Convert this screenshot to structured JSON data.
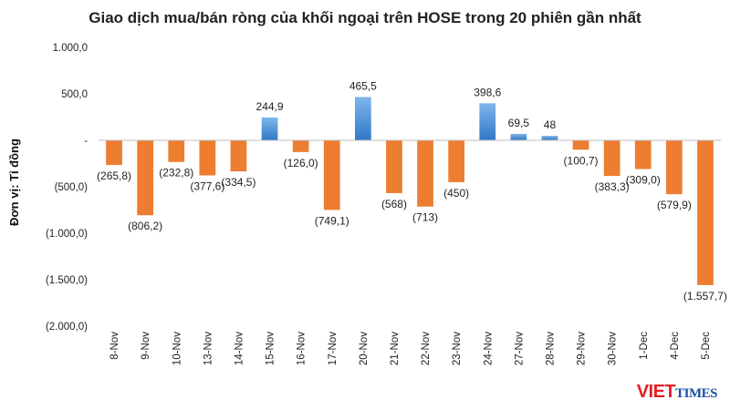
{
  "chart_data": {
    "type": "bar",
    "title": "Giao dịch mua/bán ròng của khối ngoại trên HOSE trong 20 phiên gần nhất",
    "xlabel": "",
    "ylabel": "Đơn vị: Tỉ đồng",
    "ylim": [
      -2000,
      1000
    ],
    "yticks": [
      1000,
      500,
      0,
      -500,
      -1000,
      -1500,
      -2000
    ],
    "ytick_labels": [
      "1.000,0",
      "500,0",
      "-",
      "(500,0)",
      "(1.000,0)",
      "(1.500,0)",
      "(2.000,0)"
    ],
    "categories": [
      "8-Nov",
      "9-Nov",
      "10-Nov",
      "13-Nov",
      "14-Nov",
      "15-Nov",
      "16-Nov",
      "17-Nov",
      "20-Nov",
      "21-Nov",
      "22-Nov",
      "23-Nov",
      "24-Nov",
      "27-Nov",
      "28-Nov",
      "29-Nov",
      "30-Nov",
      "1-Dec",
      "4-Dec",
      "5-Dec"
    ],
    "values": [
      -265.8,
      -806.2,
      -232.8,
      -377.6,
      -334.5,
      244.9,
      -126.0,
      -749.1,
      465.5,
      -568,
      -713,
      -450,
      398.6,
      69.5,
      48,
      -100.7,
      -383.3,
      -309.0,
      -579.9,
      -1557.7
    ],
    "data_labels": [
      "(265,8)",
      "(806,2)",
      "(232,8)",
      "(377,6)",
      "(334,5)",
      "244,9",
      "(126,0)",
      "(749,1)",
      "465,5",
      "(568)",
      "(713)",
      "(450)",
      "398,6",
      "69,5",
      "48",
      "(100,7)",
      "(383,3)",
      "(309,0)",
      "(579,9)",
      "(1.557,7)"
    ],
    "colors": {
      "positive": "#4a90d9",
      "negative": "#ed7d31",
      "axis": "#bfbfbf",
      "text": "#222222"
    },
    "grid": false,
    "legend": "none"
  },
  "logo": {
    "part1": "VIET",
    "part2": "TIMES"
  }
}
